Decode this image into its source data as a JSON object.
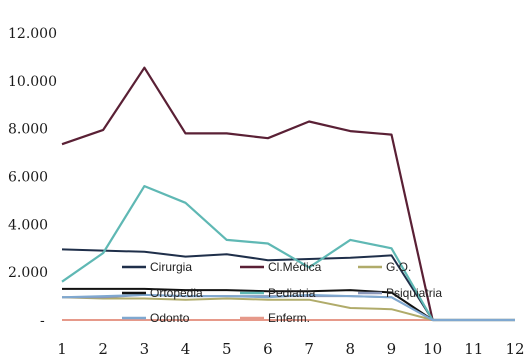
{
  "chart_data": {
    "type": "line",
    "x": [
      1,
      2,
      3,
      4,
      5,
      6,
      7,
      8,
      9,
      10,
      11,
      12
    ],
    "ylim": [
      0,
      12000
    ],
    "ytick_labels": [
      "-",
      "2.000",
      "4.000",
      "6.000",
      "8.000",
      "10.000",
      "12.000"
    ],
    "ytick_values": [
      0,
      2000,
      4000,
      6000,
      8000,
      10000,
      12000
    ],
    "xtick_labels": [
      "1",
      "2",
      "3",
      "4",
      "5",
      "6",
      "7",
      "8",
      "9",
      "10",
      "11",
      "12"
    ],
    "grid": false,
    "legend_position": "bottom-inside",
    "series": [
      {
        "name": "Cirurgia",
        "color": "#1f2f4a",
        "values": [
          2950,
          2900,
          2850,
          2650,
          2750,
          2500,
          2550,
          2600,
          2700,
          0,
          0,
          0
        ]
      },
      {
        "name": "Cl.Médica",
        "color": "#5a2035",
        "values": [
          7350,
          7950,
          10550,
          7800,
          7800,
          7600,
          8300,
          7900,
          7750,
          0,
          0,
          0
        ]
      },
      {
        "name": "G.O.",
        "color": "#b0ab6a",
        "values": [
          950,
          900,
          900,
          850,
          900,
          850,
          850,
          500,
          450,
          0,
          0,
          0
        ]
      },
      {
        "name": "Ortopedia",
        "color": "#111111",
        "values": [
          1300,
          1300,
          1300,
          1250,
          1250,
          1200,
          1200,
          1250,
          1150,
          0,
          0,
          0
        ]
      },
      {
        "name": "Pediatria",
        "color": "#5fb8b4",
        "values": [
          1600,
          2800,
          5600,
          4900,
          3350,
          3200,
          2200,
          3350,
          3000,
          0,
          0,
          0
        ]
      },
      {
        "name": "Psiquiatria",
        "color": "#8a96b8",
        "values": [
          950,
          950,
          1050,
          1000,
          1000,
          1000,
          1000,
          1000,
          950,
          0,
          0,
          0
        ]
      },
      {
        "name": "Odonto",
        "color": "#7fa8d0",
        "values": [
          950,
          1000,
          1050,
          1000,
          1000,
          950,
          1050,
          1000,
          950,
          0,
          0,
          0
        ]
      },
      {
        "name": "Enferm.",
        "color": "#e6998a",
        "values": [
          0,
          0,
          0,
          0,
          0,
          0,
          0,
          0,
          0,
          0,
          0,
          0
        ]
      }
    ]
  }
}
